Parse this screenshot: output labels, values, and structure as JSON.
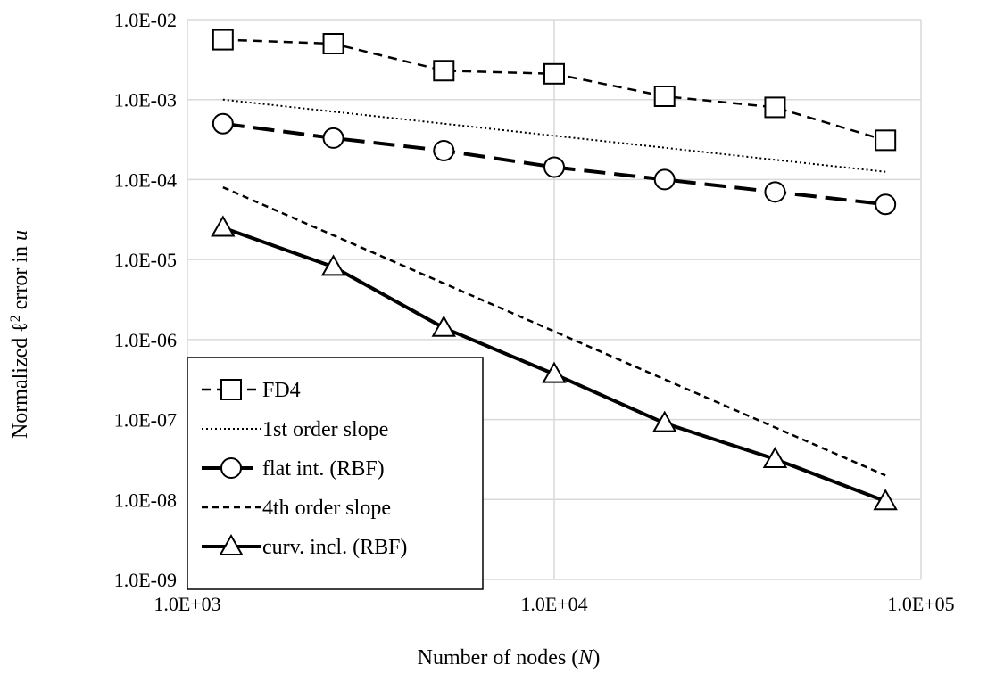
{
  "chart_data": {
    "type": "line",
    "title": "",
    "xlabel": {
      "prefix": "Number of nodes (",
      "var": "N",
      "suffix": ")"
    },
    "ylabel": {
      "prefix": "Normalized ℓ",
      "sup": "2",
      "mid": " error in ",
      "var": "u"
    },
    "x_scale": "log",
    "y_scale": "log",
    "xlim": [
      1000,
      100000
    ],
    "ylim": [
      1e-09,
      0.01
    ],
    "x_ticks": [
      {
        "value": 1000,
        "label": "1.0E+03"
      },
      {
        "value": 10000,
        "label": "1.0E+04"
      },
      {
        "value": 100000,
        "label": "1.0E+05"
      }
    ],
    "y_ticks": [
      {
        "value": 0.01,
        "label": "1.0E-02"
      },
      {
        "value": 0.001,
        "label": "1.0E-03"
      },
      {
        "value": 0.0001,
        "label": "1.0E-04"
      },
      {
        "value": 1e-05,
        "label": "1.0E-05"
      },
      {
        "value": 1e-06,
        "label": "1.0E-06"
      },
      {
        "value": 1e-07,
        "label": "1.0E-07"
      },
      {
        "value": 1e-08,
        "label": "1.0E-08"
      },
      {
        "value": 1e-09,
        "label": "1.0E-09"
      }
    ],
    "grid": true,
    "legend_position": "bottom-left",
    "series": [
      {
        "name": "FD4",
        "line": "dashed",
        "marker": "square",
        "x": [
          1250,
          2500,
          5000,
          10000,
          20000,
          40000,
          80000
        ],
        "y": [
          0.0056,
          0.005,
          0.0023,
          0.0021,
          0.0011,
          0.0008,
          0.00031
        ]
      },
      {
        "name": "1st order slope",
        "line": "dotted",
        "marker": "none",
        "x": [
          1250,
          80000
        ],
        "y": [
          0.001,
          0.000125
        ]
      },
      {
        "name": "flat int. (RBF)",
        "line": "longdash",
        "marker": "circle",
        "x": [
          1250,
          2500,
          5000,
          10000,
          20000,
          40000,
          80000
        ],
        "y": [
          0.0005,
          0.00033,
          0.00023,
          0.000143,
          0.0001,
          7e-05,
          4.9e-05
        ]
      },
      {
        "name": "4th order slope",
        "line": "dashed-fine",
        "marker": "none",
        "x": [
          1250,
          80000
        ],
        "y": [
          8e-05,
          2e-08
        ]
      },
      {
        "name": "curv. incl. (RBF)",
        "line": "solid",
        "marker": "triangle",
        "x": [
          1250,
          2500,
          5000,
          10000,
          20000,
          40000,
          80000
        ],
        "y": [
          2.5e-05,
          8.1e-06,
          1.4e-06,
          3.7e-07,
          9e-08,
          3.2e-08,
          9.5e-09
        ]
      }
    ],
    "colors": {
      "lines": "#000000",
      "grid": "#d9d9d9",
      "background": "#ffffff"
    }
  }
}
